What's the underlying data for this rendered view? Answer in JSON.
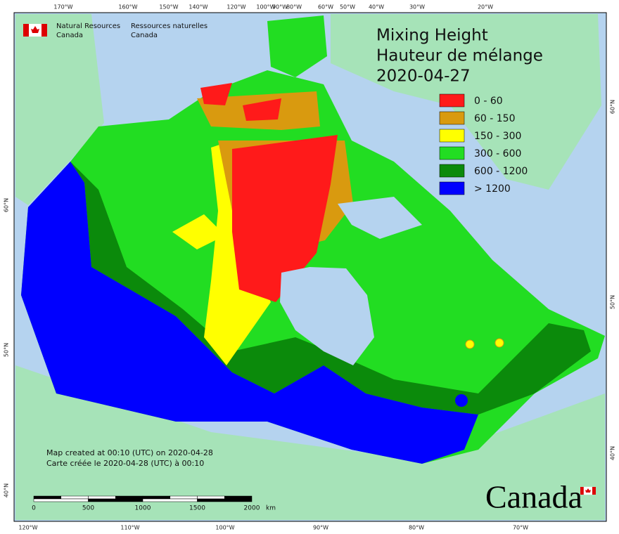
{
  "header": {
    "agency_en": [
      "Natural Resources",
      "Canada"
    ],
    "agency_fr": [
      "Ressources naturelles",
      "Canada"
    ]
  },
  "title": {
    "line1": "Mixing Height",
    "line2": "Hauteur de mélange",
    "date": "2020-04-27"
  },
  "legend": [
    {
      "label": "0 - 60",
      "color": "#ff1a1a"
    },
    {
      "label": "60 - 150",
      "color": "#d99a0f"
    },
    {
      "label": "150 - 300",
      "color": "#ffff00"
    },
    {
      "label": "300 - 600",
      "color": "#22dd22"
    },
    {
      "label": "600 - 1200",
      "color": "#0b8a0b"
    },
    {
      "label": "> 1200",
      "color": "#0000ff"
    }
  ],
  "graticule": {
    "top": [
      "170°W",
      "160°W",
      "150°W",
      "140°W",
      "120°W",
      "100°W",
      "90°W",
      "80°W",
      "60°W",
      "50°W",
      "40°W",
      "30°W",
      "20°W"
    ],
    "bottom": [
      "120°W",
      "110°W",
      "100°W",
      "90°W",
      "80°W",
      "70°W"
    ],
    "left": [
      "60°N",
      "50°N",
      "40°N"
    ],
    "right": [
      "60°N",
      "50°N",
      "40°N"
    ]
  },
  "scale_bar": {
    "labels": [
      "0",
      "500",
      "1000",
      "1500",
      "2000"
    ],
    "unit": "km"
  },
  "credits": [
    "Map created at 00:10 (UTC) on 2020-04-28",
    "Carte créée le 2020-04-28 (UTC) à 00:10"
  ],
  "wordmark": "Canada"
}
